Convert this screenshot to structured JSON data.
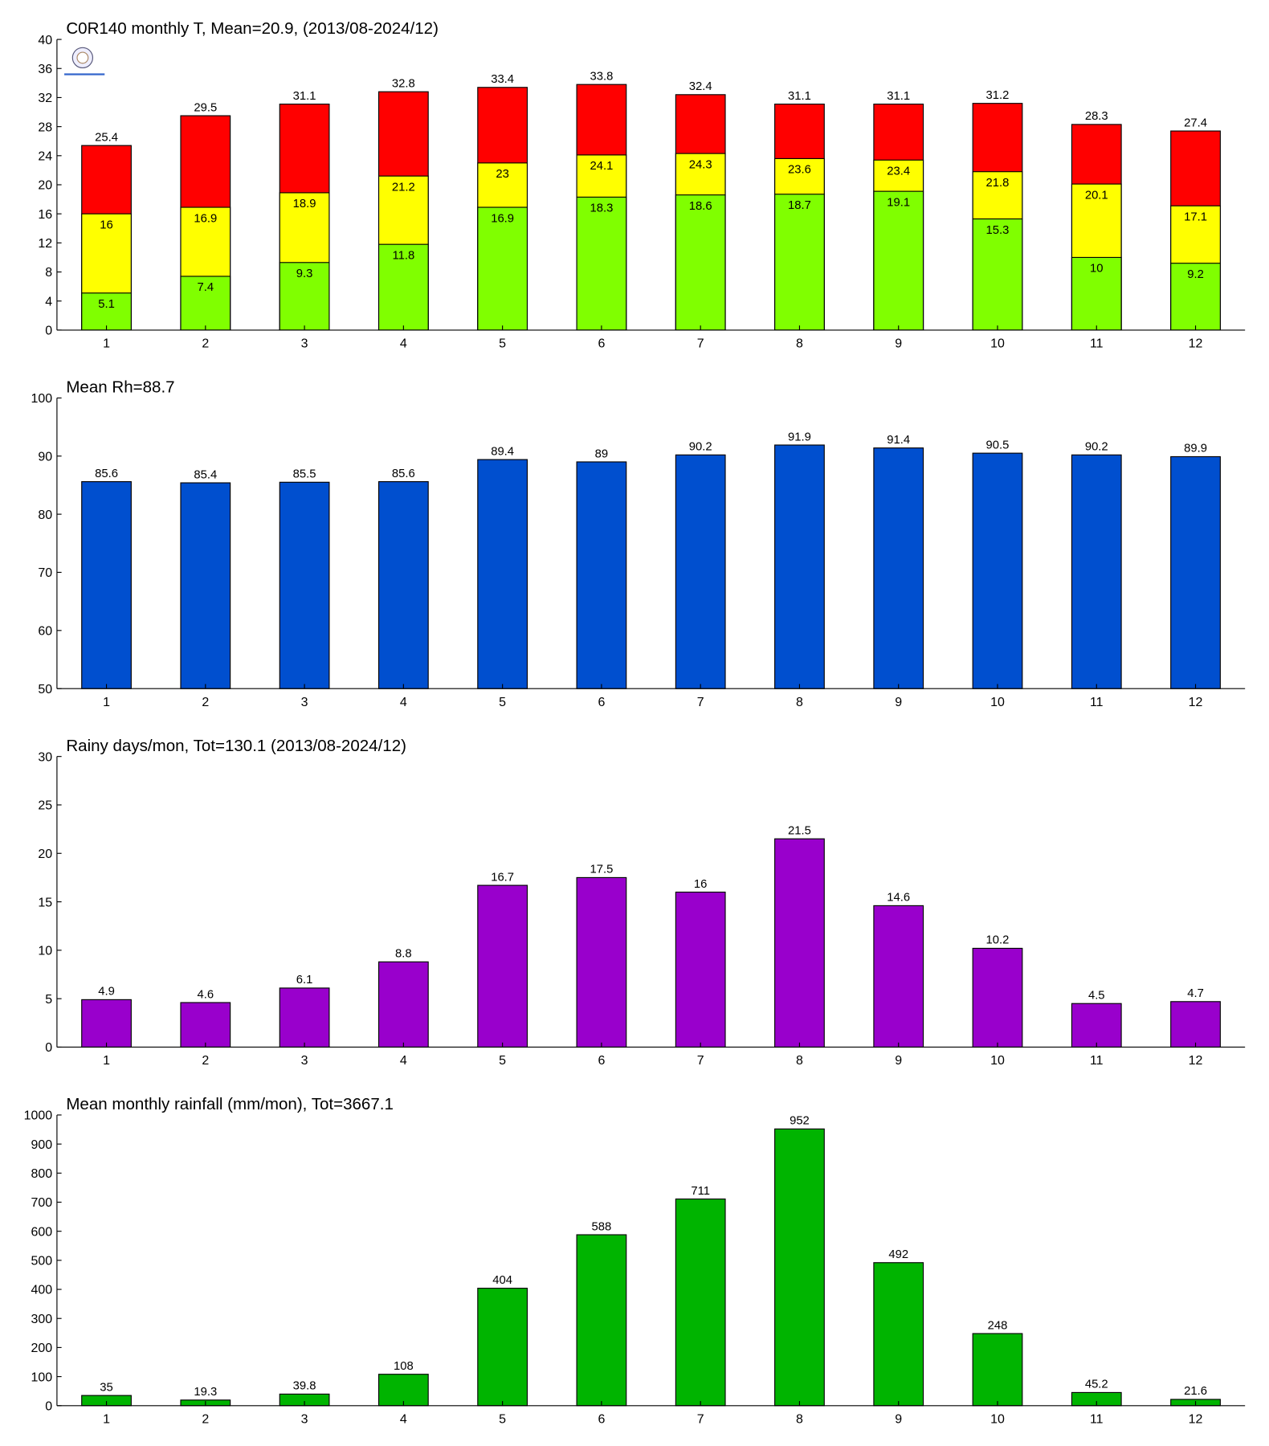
{
  "chart_data": [
    {
      "type": "bar",
      "title": "C0R140 monthly T, Mean=20.9, (2013/08-2024/12)",
      "categories": [
        "1",
        "2",
        "3",
        "4",
        "5",
        "6",
        "7",
        "8",
        "9",
        "10",
        "11",
        "12"
      ],
      "series": [
        {
          "color": "#ff0000",
          "values": [
            25.4,
            29.5,
            31.1,
            32.8,
            33.4,
            33.8,
            32.4,
            31.1,
            31.1,
            31.2,
            28.3,
            27.4
          ]
        },
        {
          "color": "#ffff00",
          "values": [
            16,
            16.9,
            18.9,
            21.2,
            23,
            24.1,
            24.3,
            23.6,
            23.4,
            21.8,
            20.1,
            17.1
          ]
        },
        {
          "color": "#80ff00",
          "values": [
            5.1,
            7.4,
            9.3,
            11.8,
            16.9,
            18.3,
            18.6,
            18.7,
            19.1,
            15.3,
            10,
            9.2
          ]
        }
      ],
      "ylim": [
        0,
        40
      ],
      "yticks": [
        0,
        4,
        8,
        12,
        16,
        20,
        24,
        28,
        32,
        36,
        40
      ]
    },
    {
      "type": "bar",
      "title": "Mean Rh=88.7",
      "categories": [
        "1",
        "2",
        "3",
        "4",
        "5",
        "6",
        "7",
        "8",
        "9",
        "10",
        "11",
        "12"
      ],
      "values": [
        85.6,
        85.4,
        85.5,
        85.6,
        89.4,
        89,
        90.2,
        91.9,
        91.4,
        90.5,
        90.2,
        89.9
      ],
      "color": "#004fcf",
      "ylim": [
        50,
        100
      ],
      "yticks": [
        50,
        60,
        70,
        80,
        90,
        100
      ]
    },
    {
      "type": "bar",
      "title": "Rainy days/mon, Tot=130.1 (2013/08-2024/12)",
      "categories": [
        "1",
        "2",
        "3",
        "4",
        "5",
        "6",
        "7",
        "8",
        "9",
        "10",
        "11",
        "12"
      ],
      "values": [
        4.9,
        4.6,
        6.1,
        8.8,
        16.7,
        17.5,
        16,
        21.5,
        14.6,
        10.2,
        4.5,
        4.7
      ],
      "color": "#9900cc",
      "ylim": [
        0,
        30
      ],
      "yticks": [
        0,
        5,
        10,
        15,
        20,
        25,
        30
      ]
    },
    {
      "type": "bar",
      "title": "Mean monthly rainfall (mm/mon), Tot=3667.1",
      "categories": [
        "1",
        "2",
        "3",
        "4",
        "5",
        "6",
        "7",
        "8",
        "9",
        "10",
        "11",
        "12"
      ],
      "values": [
        35,
        19.3,
        39.8,
        108,
        404,
        588,
        711,
        952,
        492,
        248,
        45.2,
        21.6
      ],
      "color": "#00b400",
      "ylim": [
        0,
        1000
      ],
      "yticks": [
        0,
        100,
        200,
        300,
        400,
        500,
        600,
        700,
        800,
        900,
        1000
      ]
    }
  ]
}
